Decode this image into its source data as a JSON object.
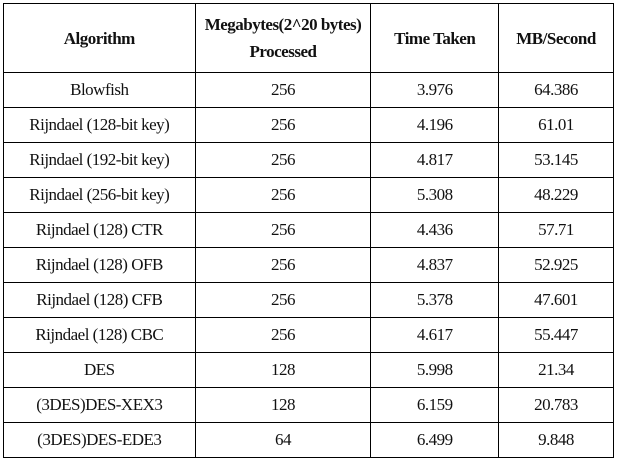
{
  "table": {
    "header": [
      "Algorithm",
      "Megabytes(2^20 bytes) Processed",
      "Time Taken",
      "MB/Second"
    ],
    "rows": [
      [
        "Blowfish",
        "256",
        "3.976",
        "64.386"
      ],
      [
        "Rijndael (128-bit key)",
        "256",
        "4.196",
        "61.01"
      ],
      [
        "Rijndael (192-bit key)",
        "256",
        "4.817",
        "53.145"
      ],
      [
        "Rijndael (256-bit key)",
        "256",
        "5.308",
        "48.229"
      ],
      [
        "Rijndael (128) CTR",
        "256",
        "4.436",
        "57.71"
      ],
      [
        "Rijndael (128) OFB",
        "256",
        "4.837",
        "52.925"
      ],
      [
        "Rijndael (128) CFB",
        "256",
        "5.378",
        "47.601"
      ],
      [
        "Rijndael (128) CBC",
        "256",
        "4.617",
        "55.447"
      ],
      [
        "DES",
        "128",
        "5.998",
        "21.34"
      ],
      [
        "(3DES)DES-XEX3",
        "128",
        "6.159",
        "20.783"
      ],
      [
        "(3DES)DES-EDE3",
        "64",
        "6.499",
        "9.848"
      ]
    ]
  }
}
